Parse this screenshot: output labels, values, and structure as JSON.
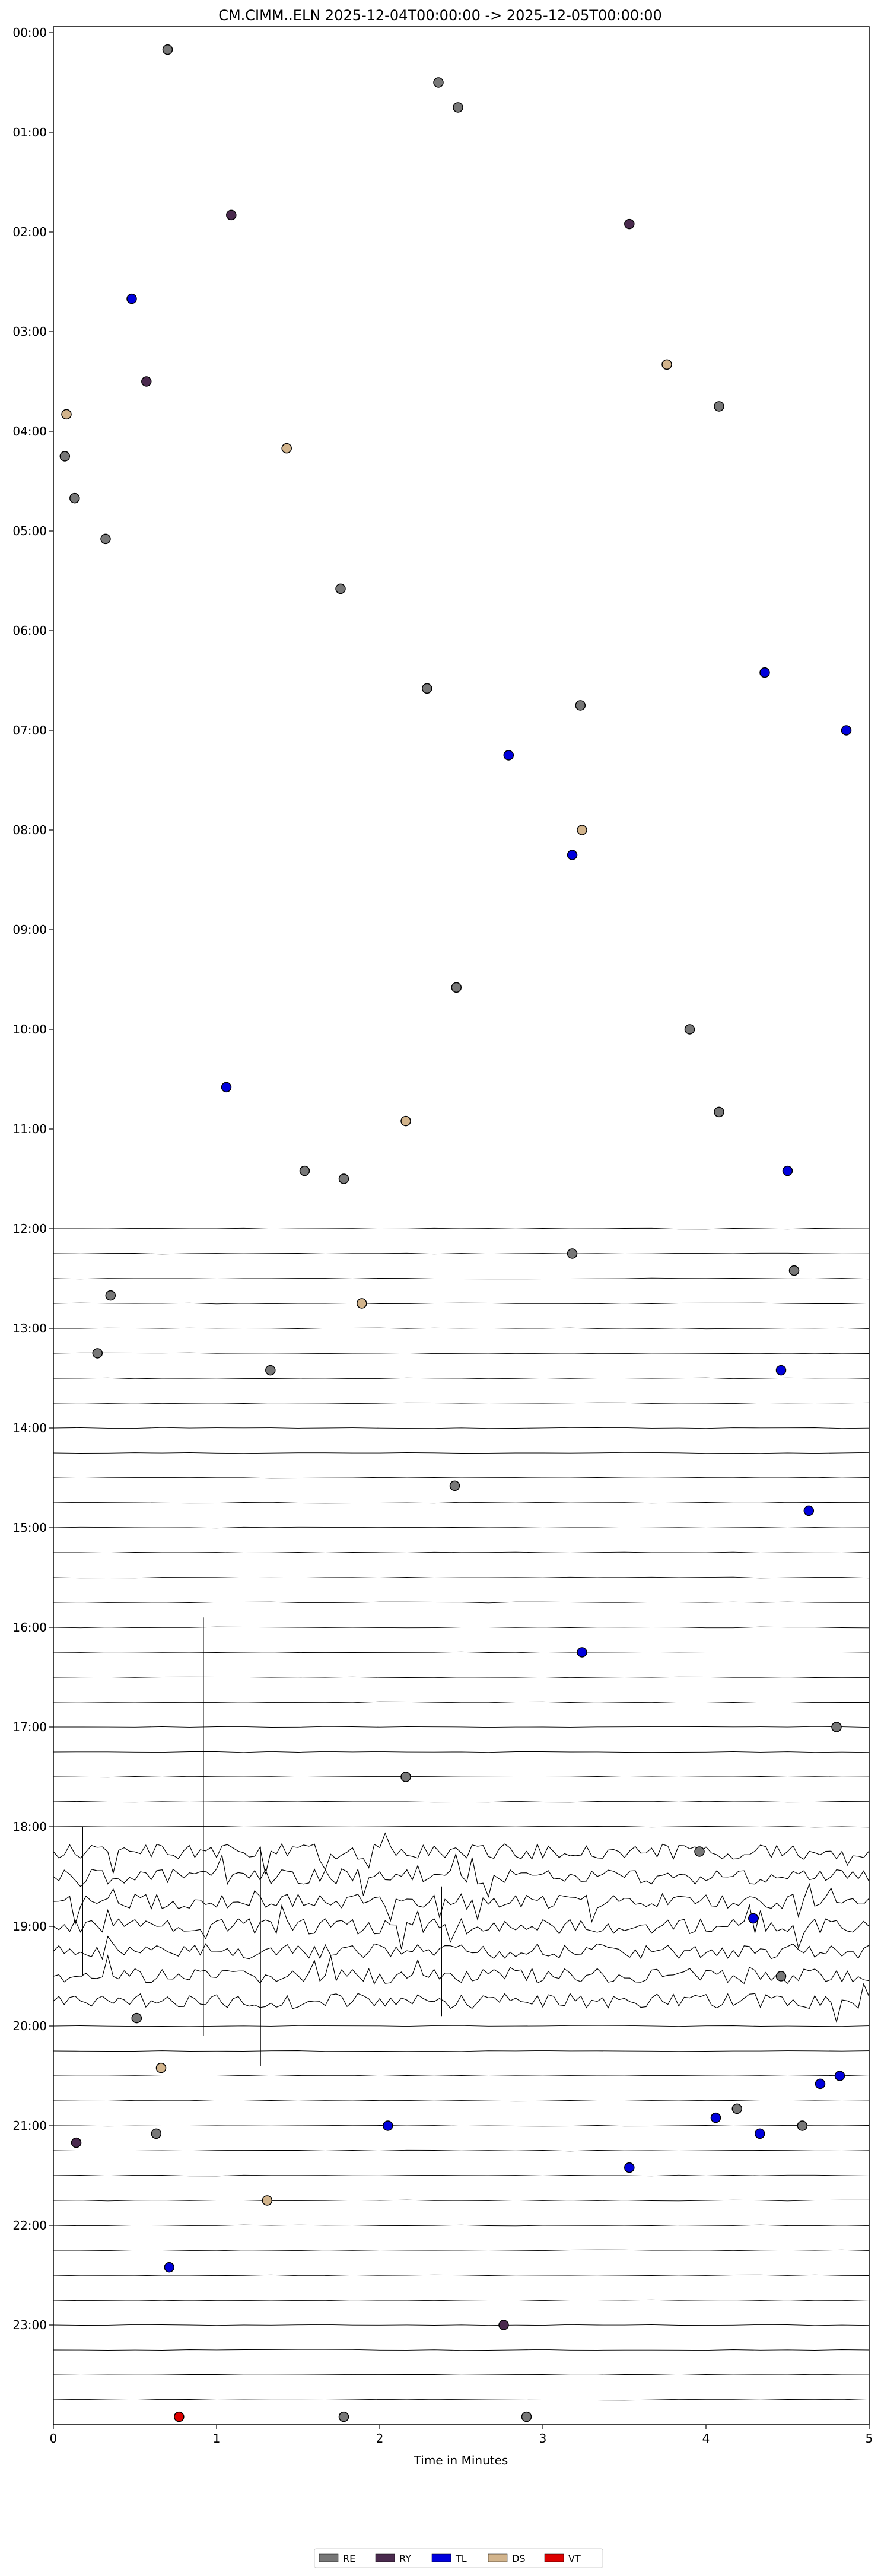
{
  "chart_data": {
    "type": "scatter",
    "title": "CM.CIMM..ELN  2025-12-04T00:00:00 -> 2025-12-05T00:00:00",
    "xlabel": "Time in Minutes",
    "ylabel": "",
    "xlim": [
      0,
      5
    ],
    "ylim": [
      0,
      24
    ],
    "x_ticks": [
      0,
      1,
      2,
      3,
      4,
      5
    ],
    "y_tick_labels": [
      "00:00",
      "01:00",
      "02:00",
      "03:00",
      "04:00",
      "05:00",
      "06:00",
      "07:00",
      "08:00",
      "09:00",
      "10:00",
      "11:00",
      "12:00",
      "13:00",
      "14:00",
      "15:00",
      "16:00",
      "17:00",
      "18:00",
      "19:00",
      "20:00",
      "21:00",
      "22:00",
      "23:00"
    ],
    "y_axis_inverted": true,
    "grid": false,
    "legend_placement": "bottom-center",
    "legend": [
      {
        "code": "RE",
        "color": "#777777"
      },
      {
        "code": "RY",
        "color": "#4a2a4e"
      },
      {
        "code": "TL",
        "color": "#0000dd"
      },
      {
        "code": "DS",
        "color": "#d2b48c"
      },
      {
        "code": "VT",
        "color": "#dd0000"
      }
    ],
    "trace_rows_hours": [
      12.1,
      24.0
    ],
    "burst_hours": [
      18.2,
      19.8
    ],
    "points": [
      {
        "x": 0.7,
        "y": 0.17,
        "class": "RE"
      },
      {
        "x": 2.36,
        "y": 0.5,
        "class": "RE"
      },
      {
        "x": 2.48,
        "y": 0.75,
        "class": "RE"
      },
      {
        "x": 1.09,
        "y": 1.83,
        "class": "RY"
      },
      {
        "x": 3.53,
        "y": 1.92,
        "class": "RY"
      },
      {
        "x": 0.48,
        "y": 2.67,
        "class": "TL"
      },
      {
        "x": 0.57,
        "y": 3.5,
        "class": "RY"
      },
      {
        "x": 3.76,
        "y": 3.33,
        "class": "DS"
      },
      {
        "x": 0.08,
        "y": 3.83,
        "class": "DS"
      },
      {
        "x": 4.08,
        "y": 3.75,
        "class": "RE"
      },
      {
        "x": 0.07,
        "y": 4.25,
        "class": "RE"
      },
      {
        "x": 1.43,
        "y": 4.17,
        "class": "DS"
      },
      {
        "x": 0.13,
        "y": 4.67,
        "class": "RE"
      },
      {
        "x": 0.32,
        "y": 5.08,
        "class": "RE"
      },
      {
        "x": 1.76,
        "y": 5.58,
        "class": "RE"
      },
      {
        "x": 2.29,
        "y": 6.58,
        "class": "RE"
      },
      {
        "x": 4.36,
        "y": 6.42,
        "class": "TL"
      },
      {
        "x": 3.23,
        "y": 6.75,
        "class": "RE"
      },
      {
        "x": 4.86,
        "y": 7.0,
        "class": "TL"
      },
      {
        "x": 2.79,
        "y": 7.25,
        "class": "TL"
      },
      {
        "x": 3.24,
        "y": 8.0,
        "class": "DS"
      },
      {
        "x": 3.18,
        "y": 8.25,
        "class": "TL"
      },
      {
        "x": 2.47,
        "y": 9.58,
        "class": "RE"
      },
      {
        "x": 3.9,
        "y": 10.0,
        "class": "RE"
      },
      {
        "x": 1.06,
        "y": 10.58,
        "class": "TL"
      },
      {
        "x": 4.08,
        "y": 10.83,
        "class": "RE"
      },
      {
        "x": 2.16,
        "y": 10.92,
        "class": "DS"
      },
      {
        "x": 1.54,
        "y": 11.42,
        "class": "RE"
      },
      {
        "x": 1.78,
        "y": 11.5,
        "class": "RE"
      },
      {
        "x": 4.5,
        "y": 11.42,
        "class": "TL"
      },
      {
        "x": 3.18,
        "y": 12.25,
        "class": "RE"
      },
      {
        "x": 4.54,
        "y": 12.42,
        "class": "RE"
      },
      {
        "x": 0.35,
        "y": 12.67,
        "class": "RE"
      },
      {
        "x": 1.89,
        "y": 12.75,
        "class": "DS"
      },
      {
        "x": 0.27,
        "y": 13.25,
        "class": "RE"
      },
      {
        "x": 1.33,
        "y": 13.42,
        "class": "RE"
      },
      {
        "x": 4.46,
        "y": 13.42,
        "class": "TL"
      },
      {
        "x": 2.46,
        "y": 14.58,
        "class": "RE"
      },
      {
        "x": 4.63,
        "y": 14.83,
        "class": "TL"
      },
      {
        "x": 3.24,
        "y": 16.25,
        "class": "TL"
      },
      {
        "x": 4.8,
        "y": 17.0,
        "class": "RE"
      },
      {
        "x": 2.16,
        "y": 17.5,
        "class": "RE"
      },
      {
        "x": 3.96,
        "y": 18.25,
        "class": "RE"
      },
      {
        "x": 4.29,
        "y": 18.92,
        "class": "TL"
      },
      {
        "x": 4.46,
        "y": 19.5,
        "class": "RE"
      },
      {
        "x": 0.51,
        "y": 19.92,
        "class": "RE"
      },
      {
        "x": 0.66,
        "y": 20.42,
        "class": "DS"
      },
      {
        "x": 4.82,
        "y": 20.5,
        "class": "TL"
      },
      {
        "x": 4.7,
        "y": 20.58,
        "class": "TL"
      },
      {
        "x": 4.19,
        "y": 20.83,
        "class": "RE"
      },
      {
        "x": 4.06,
        "y": 20.92,
        "class": "TL"
      },
      {
        "x": 4.59,
        "y": 21.0,
        "class": "RE"
      },
      {
        "x": 2.05,
        "y": 21.0,
        "class": "TL"
      },
      {
        "x": 0.63,
        "y": 21.08,
        "class": "RE"
      },
      {
        "x": 4.33,
        "y": 21.08,
        "class": "TL"
      },
      {
        "x": 0.14,
        "y": 21.17,
        "class": "RY"
      },
      {
        "x": 3.53,
        "y": 21.42,
        "class": "TL"
      },
      {
        "x": 1.31,
        "y": 21.75,
        "class": "DS"
      },
      {
        "x": 0.71,
        "y": 22.42,
        "class": "TL"
      },
      {
        "x": 2.76,
        "y": 23.0,
        "class": "RY"
      },
      {
        "x": 0.77,
        "y": 23.92,
        "class": "VT"
      },
      {
        "x": 1.78,
        "y": 23.92,
        "class": "RE"
      },
      {
        "x": 2.9,
        "y": 23.92,
        "class": "RE"
      }
    ]
  }
}
